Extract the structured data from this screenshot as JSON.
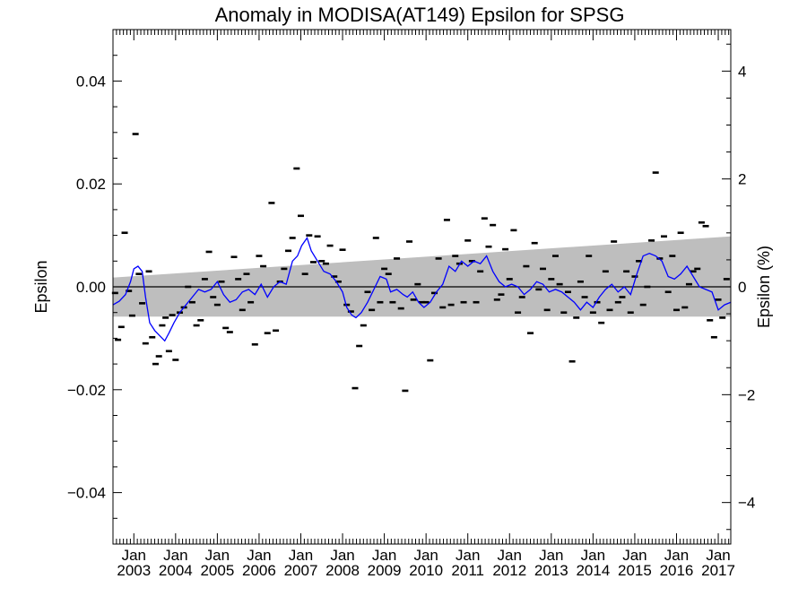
{
  "chart_data": {
    "type": "scatter",
    "title": "Anomaly in MODISA(AT149) Epsilon for SPSG",
    "ylabel": "Epsilon",
    "y2label": "Epsilon (%)",
    "xlim": [
      2002.5,
      2017.3
    ],
    "ylim": [
      -0.05,
      0.05
    ],
    "y2lim": [
      -4.77,
      4.77
    ],
    "yticks": [
      "0.04",
      "0.02",
      "0.00",
      "−0.02",
      "−0.04"
    ],
    "yticks_values": [
      0.04,
      0.02,
      0.0,
      -0.02,
      -0.04
    ],
    "y2ticks": [
      "4",
      "2",
      "0",
      "−2",
      "−4"
    ],
    "y2ticks_values": [
      4,
      2,
      0,
      -2,
      -4
    ],
    "xticks": [
      {
        "month": "Jan",
        "year": "2003",
        "x": 2003.0
      },
      {
        "month": "Jan",
        "year": "2004",
        "x": 2004.0
      },
      {
        "month": "Jan",
        "year": "2005",
        "x": 2005.0
      },
      {
        "month": "Jan",
        "year": "2006",
        "x": 2006.0
      },
      {
        "month": "Jan",
        "year": "2007",
        "x": 2007.0
      },
      {
        "month": "Jan",
        "year": "2008",
        "x": 2008.0
      },
      {
        "month": "Jan",
        "year": "2009",
        "x": 2009.0
      },
      {
        "month": "Jan",
        "year": "2010",
        "x": 2010.0
      },
      {
        "month": "Jan",
        "year": "2011",
        "x": 2011.0
      },
      {
        "month": "Jan",
        "year": "2012",
        "x": 2012.0
      },
      {
        "month": "Jan",
        "year": "2013",
        "x": 2013.0
      },
      {
        "month": "Jan",
        "year": "2014",
        "x": 2014.0
      },
      {
        "month": "Jan",
        "year": "2015",
        "x": 2015.0
      },
      {
        "month": "Jan",
        "year": "2016",
        "x": 2016.0
      },
      {
        "month": "Jan",
        "year": "2017",
        "x": 2017.0
      }
    ],
    "zero_line": 0.0,
    "band": {
      "color": "#bebebe",
      "upper": [
        [
          2002.5,
          0.0018
        ],
        [
          2017.3,
          0.0098
        ]
      ],
      "lower": [
        [
          2002.5,
          -0.0058
        ],
        [
          2017.3,
          -0.0058
        ]
      ]
    },
    "colors": {
      "band": "#bebebe",
      "line": "#0000ff",
      "marker": "#000000",
      "axis": "#000000"
    },
    "series": [
      {
        "type": "scatter",
        "marker": "dash",
        "color": "#000000",
        "points": [
          [
            2002.55,
            -0.0012
          ],
          [
            2002.62,
            -0.0103
          ],
          [
            2002.7,
            -0.0078
          ],
          [
            2002.78,
            0.0105
          ],
          [
            2002.88,
            -0.0008
          ],
          [
            2002.96,
            -0.0056
          ],
          [
            2003.04,
            0.0297
          ],
          [
            2003.12,
            0.0025
          ],
          [
            2003.2,
            -0.0032
          ],
          [
            2003.28,
            -0.011
          ],
          [
            2003.36,
            0.003
          ],
          [
            2003.44,
            -0.0098
          ],
          [
            2003.52,
            -0.015
          ],
          [
            2003.6,
            -0.0135
          ],
          [
            2003.68,
            -0.0075
          ],
          [
            2003.76,
            -0.006
          ],
          [
            2003.84,
            -0.0125
          ],
          [
            2003.92,
            -0.0055
          ],
          [
            2004.0,
            -0.0142
          ],
          [
            2004.1,
            -0.005
          ],
          [
            2004.2,
            -0.004
          ],
          [
            2004.3,
            0.0
          ],
          [
            2004.4,
            -0.003
          ],
          [
            2004.5,
            -0.0075
          ],
          [
            2004.6,
            -0.0065
          ],
          [
            2004.7,
            0.0015
          ],
          [
            2004.8,
            0.0068
          ],
          [
            2004.9,
            -0.002
          ],
          [
            2005.0,
            -0.0035
          ],
          [
            2005.1,
            0.001
          ],
          [
            2005.2,
            -0.008
          ],
          [
            2005.3,
            -0.0088
          ],
          [
            2005.4,
            0.0058
          ],
          [
            2005.5,
            0.0015
          ],
          [
            2005.6,
            -0.0045
          ],
          [
            2005.7,
            0.0025
          ],
          [
            2005.8,
            -0.003
          ],
          [
            2005.9,
            -0.0112
          ],
          [
            2006.0,
            0.006
          ],
          [
            2006.1,
            0.004
          ],
          [
            2006.2,
            -0.009
          ],
          [
            2006.3,
            0.0163
          ],
          [
            2006.4,
            -0.0085
          ],
          [
            2006.5,
            0.001
          ],
          [
            2006.6,
            0.0035
          ],
          [
            2006.7,
            0.007
          ],
          [
            2006.8,
            0.0095
          ],
          [
            2006.9,
            0.023
          ],
          [
            2007.0,
            0.0138
          ],
          [
            2007.1,
            0.0025
          ],
          [
            2007.2,
            0.01
          ],
          [
            2007.3,
            0.0048
          ],
          [
            2007.4,
            0.0098
          ],
          [
            2007.5,
            0.005
          ],
          [
            2007.6,
            0.0045
          ],
          [
            2007.7,
            0.008
          ],
          [
            2007.8,
            0.002
          ],
          [
            2007.9,
            0.001
          ],
          [
            2008.0,
            0.0072
          ],
          [
            2008.1,
            -0.0035
          ],
          [
            2008.2,
            -0.0048
          ],
          [
            2008.3,
            -0.0197
          ],
          [
            2008.4,
            -0.0115
          ],
          [
            2008.5,
            -0.0075
          ],
          [
            2008.6,
            -0.001
          ],
          [
            2008.7,
            -0.0045
          ],
          [
            2008.8,
            0.0095
          ],
          [
            2008.9,
            -0.003
          ],
          [
            2009.0,
            0.0035
          ],
          [
            2009.1,
            0.0025
          ],
          [
            2009.2,
            -0.003
          ],
          [
            2009.3,
            0.0055
          ],
          [
            2009.4,
            -0.0042
          ],
          [
            2009.5,
            -0.0202
          ],
          [
            2009.6,
            0.0088
          ],
          [
            2009.7,
            -0.0025
          ],
          [
            2009.8,
            0.0005
          ],
          [
            2009.9,
            -0.003
          ],
          [
            2010.0,
            -0.003
          ],
          [
            2010.1,
            -0.0143
          ],
          [
            2010.2,
            -0.0012
          ],
          [
            2010.3,
            0.0055
          ],
          [
            2010.4,
            -0.004
          ],
          [
            2010.5,
            0.013
          ],
          [
            2010.6,
            -0.0035
          ],
          [
            2010.7,
            0.006
          ],
          [
            2010.8,
            0.0045
          ],
          [
            2010.9,
            -0.003
          ],
          [
            2011.0,
            0.009
          ],
          [
            2011.1,
            0.005
          ],
          [
            2011.2,
            -0.003
          ],
          [
            2011.3,
            0.003
          ],
          [
            2011.4,
            0.0133
          ],
          [
            2011.5,
            0.0078
          ],
          [
            2011.6,
            0.012
          ],
          [
            2011.7,
            -0.0025
          ],
          [
            2011.8,
            -0.0015
          ],
          [
            2011.9,
            0.0073
          ],
          [
            2012.0,
            0.0015
          ],
          [
            2012.1,
            0.011
          ],
          [
            2012.2,
            -0.005
          ],
          [
            2012.3,
            -0.002
          ],
          [
            2012.4,
            0.004
          ],
          [
            2012.5,
            -0.009
          ],
          [
            2012.6,
            0.0085
          ],
          [
            2012.7,
            -0.0005
          ],
          [
            2012.8,
            0.0035
          ],
          [
            2012.9,
            -0.0045
          ],
          [
            2013.0,
            0.0015
          ],
          [
            2013.1,
            0.006
          ],
          [
            2013.2,
            0.0005
          ],
          [
            2013.3,
            -0.005
          ],
          [
            2013.4,
            -0.001
          ],
          [
            2013.5,
            -0.0145
          ],
          [
            2013.6,
            -0.006
          ],
          [
            2013.7,
            0.001
          ],
          [
            2013.8,
            -0.002
          ],
          [
            2013.9,
            0.006
          ],
          [
            2014.0,
            -0.005
          ],
          [
            2014.1,
            -0.003
          ],
          [
            2014.2,
            -0.007
          ],
          [
            2014.3,
            0.003
          ],
          [
            2014.4,
            -0.0045
          ],
          [
            2014.5,
            0.0088
          ],
          [
            2014.6,
            -0.003
          ],
          [
            2014.7,
            -0.002
          ],
          [
            2014.8,
            0.003
          ],
          [
            2014.9,
            -0.005
          ],
          [
            2015.0,
            0.002
          ],
          [
            2015.1,
            0.005
          ],
          [
            2015.2,
            -0.0035
          ],
          [
            2015.3,
            0.0
          ],
          [
            2015.4,
            0.009
          ],
          [
            2015.5,
            0.0222
          ],
          [
            2015.6,
            0.0055
          ],
          [
            2015.7,
            0.0098
          ],
          [
            2015.8,
            -0.001
          ],
          [
            2015.9,
            0.006
          ],
          [
            2016.0,
            -0.0045
          ],
          [
            2016.1,
            0.0105
          ],
          [
            2016.2,
            -0.004
          ],
          [
            2016.3,
            0.0005
          ],
          [
            2016.4,
            0.003
          ],
          [
            2016.5,
            0.0035
          ],
          [
            2016.6,
            0.0125
          ],
          [
            2016.7,
            0.0118
          ],
          [
            2016.8,
            -0.0065
          ],
          [
            2016.9,
            -0.0098
          ],
          [
            2017.0,
            -0.0025
          ],
          [
            2017.1,
            -0.006
          ],
          [
            2017.2,
            0.0015
          ]
        ]
      },
      {
        "type": "line",
        "color": "#0000ff",
        "points": [
          [
            2002.5,
            -0.0035
          ],
          [
            2002.65,
            -0.0028
          ],
          [
            2002.8,
            -0.0015
          ],
          [
            2002.92,
            0.001
          ],
          [
            2003.0,
            0.0035
          ],
          [
            2003.1,
            0.004
          ],
          [
            2003.2,
            0.003
          ],
          [
            2003.28,
            -0.002
          ],
          [
            2003.38,
            -0.007
          ],
          [
            2003.5,
            -0.0085
          ],
          [
            2003.62,
            -0.0095
          ],
          [
            2003.74,
            -0.0105
          ],
          [
            2003.84,
            -0.009
          ],
          [
            2003.96,
            -0.007
          ],
          [
            2004.1,
            -0.005
          ],
          [
            2004.25,
            -0.0035
          ],
          [
            2004.4,
            -0.002
          ],
          [
            2004.55,
            -0.0005
          ],
          [
            2004.7,
            -0.001
          ],
          [
            2004.85,
            -0.0005
          ],
          [
            2005.0,
            0.001
          ],
          [
            2005.15,
            -0.0015
          ],
          [
            2005.3,
            -0.003
          ],
          [
            2005.45,
            -0.0025
          ],
          [
            2005.6,
            -0.001
          ],
          [
            2005.75,
            -0.0005
          ],
          [
            2005.9,
            -0.0015
          ],
          [
            2006.05,
            0.0005
          ],
          [
            2006.2,
            -0.002
          ],
          [
            2006.35,
            0.0
          ],
          [
            2006.5,
            0.001
          ],
          [
            2006.65,
            0.0005
          ],
          [
            2006.8,
            0.005
          ],
          [
            2006.92,
            0.006
          ],
          [
            2007.02,
            0.008
          ],
          [
            2007.15,
            0.0095
          ],
          [
            2007.25,
            0.007
          ],
          [
            2007.4,
            0.005
          ],
          [
            2007.55,
            0.003
          ],
          [
            2007.7,
            0.0025
          ],
          [
            2007.85,
            0.001
          ],
          [
            2008.0,
            -0.001
          ],
          [
            2008.1,
            -0.004
          ],
          [
            2008.22,
            -0.0055
          ],
          [
            2008.32,
            -0.006
          ],
          [
            2008.45,
            -0.005
          ],
          [
            2008.6,
            -0.003
          ],
          [
            2008.75,
            -0.0005
          ],
          [
            2008.9,
            0.002
          ],
          [
            2009.05,
            0.0015
          ],
          [
            2009.15,
            -0.001
          ],
          [
            2009.3,
            -0.0005
          ],
          [
            2009.45,
            -0.0015
          ],
          [
            2009.55,
            -0.002
          ],
          [
            2009.68,
            -0.001
          ],
          [
            2009.82,
            -0.003
          ],
          [
            2009.95,
            -0.004
          ],
          [
            2010.1,
            -0.003
          ],
          [
            2010.25,
            -0.001
          ],
          [
            2010.4,
            0.0005
          ],
          [
            2010.55,
            0.004
          ],
          [
            2010.7,
            0.003
          ],
          [
            2010.85,
            0.005
          ],
          [
            2011.0,
            0.004
          ],
          [
            2011.15,
            0.005
          ],
          [
            2011.3,
            0.0045
          ],
          [
            2011.45,
            0.006
          ],
          [
            2011.6,
            0.003
          ],
          [
            2011.75,
            0.001
          ],
          [
            2011.9,
            0.0
          ],
          [
            2012.05,
            0.0005
          ],
          [
            2012.2,
            0.0
          ],
          [
            2012.35,
            -0.0015
          ],
          [
            2012.5,
            -0.0005
          ],
          [
            2012.65,
            0.001
          ],
          [
            2012.8,
            0.0005
          ],
          [
            2012.95,
            -0.001
          ],
          [
            2013.1,
            -0.0005
          ],
          [
            2013.25,
            -0.001
          ],
          [
            2013.4,
            -0.002
          ],
          [
            2013.55,
            -0.003
          ],
          [
            2013.7,
            -0.0045
          ],
          [
            2013.85,
            -0.003
          ],
          [
            2014.0,
            -0.004
          ],
          [
            2014.15,
            -0.002
          ],
          [
            2014.3,
            -0.0005
          ],
          [
            2014.45,
            0.0005
          ],
          [
            2014.6,
            -0.001
          ],
          [
            2014.75,
            0.0
          ],
          [
            2014.9,
            -0.0015
          ],
          [
            2015.05,
            0.0025
          ],
          [
            2015.2,
            0.006
          ],
          [
            2015.35,
            0.0065
          ],
          [
            2015.5,
            0.006
          ],
          [
            2015.65,
            0.005
          ],
          [
            2015.8,
            0.002
          ],
          [
            2015.95,
            0.0015
          ],
          [
            2016.1,
            0.0025
          ],
          [
            2016.25,
            0.004
          ],
          [
            2016.4,
            0.002
          ],
          [
            2016.55,
            0.0
          ],
          [
            2016.7,
            -0.0005
          ],
          [
            2016.85,
            -0.001
          ],
          [
            2017.0,
            -0.0045
          ],
          [
            2017.15,
            -0.0035
          ],
          [
            2017.3,
            -0.003
          ]
        ]
      }
    ]
  }
}
